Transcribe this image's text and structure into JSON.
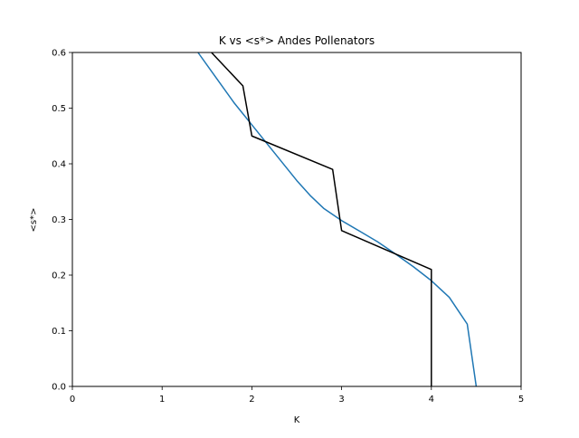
{
  "chart_data": {
    "type": "line",
    "title": "K vs <s*> Andes Pollenators",
    "xlabel": "K",
    "ylabel": "<s*>",
    "xlim": [
      0,
      5
    ],
    "ylim": [
      0,
      0.6
    ],
    "xticks": [
      0,
      1,
      2,
      3,
      4,
      5
    ],
    "xtick_labels": [
      "0",
      "1",
      "2",
      "3",
      "4",
      "5"
    ],
    "yticks": [
      0.0,
      0.1,
      0.2,
      0.3,
      0.4,
      0.5,
      0.6
    ],
    "ytick_labels": [
      "0.0",
      "0.1",
      "0.2",
      "0.3",
      "0.4",
      "0.5",
      "0.6"
    ],
    "grid": false,
    "legend": "none",
    "series": [
      {
        "color": "#1f77b4",
        "x": [
          1.4,
          1.6,
          1.8,
          2.0,
          2.2,
          2.5,
          2.65,
          2.8,
          3.0,
          3.2,
          3.4,
          3.6,
          3.8,
          4.0,
          4.2,
          4.4,
          4.5
        ],
        "y": [
          0.6,
          0.555,
          0.51,
          0.47,
          0.43,
          0.37,
          0.343,
          0.32,
          0.298,
          0.279,
          0.26,
          0.238,
          0.215,
          0.19,
          0.16,
          0.112,
          0.0
        ]
      },
      {
        "color": "#000000",
        "x": [
          1.55,
          1.9,
          2.0,
          2.9,
          3.0,
          4.0,
          4.0
        ],
        "y": [
          0.6,
          0.54,
          0.45,
          0.39,
          0.28,
          0.21,
          0.0
        ]
      }
    ]
  }
}
